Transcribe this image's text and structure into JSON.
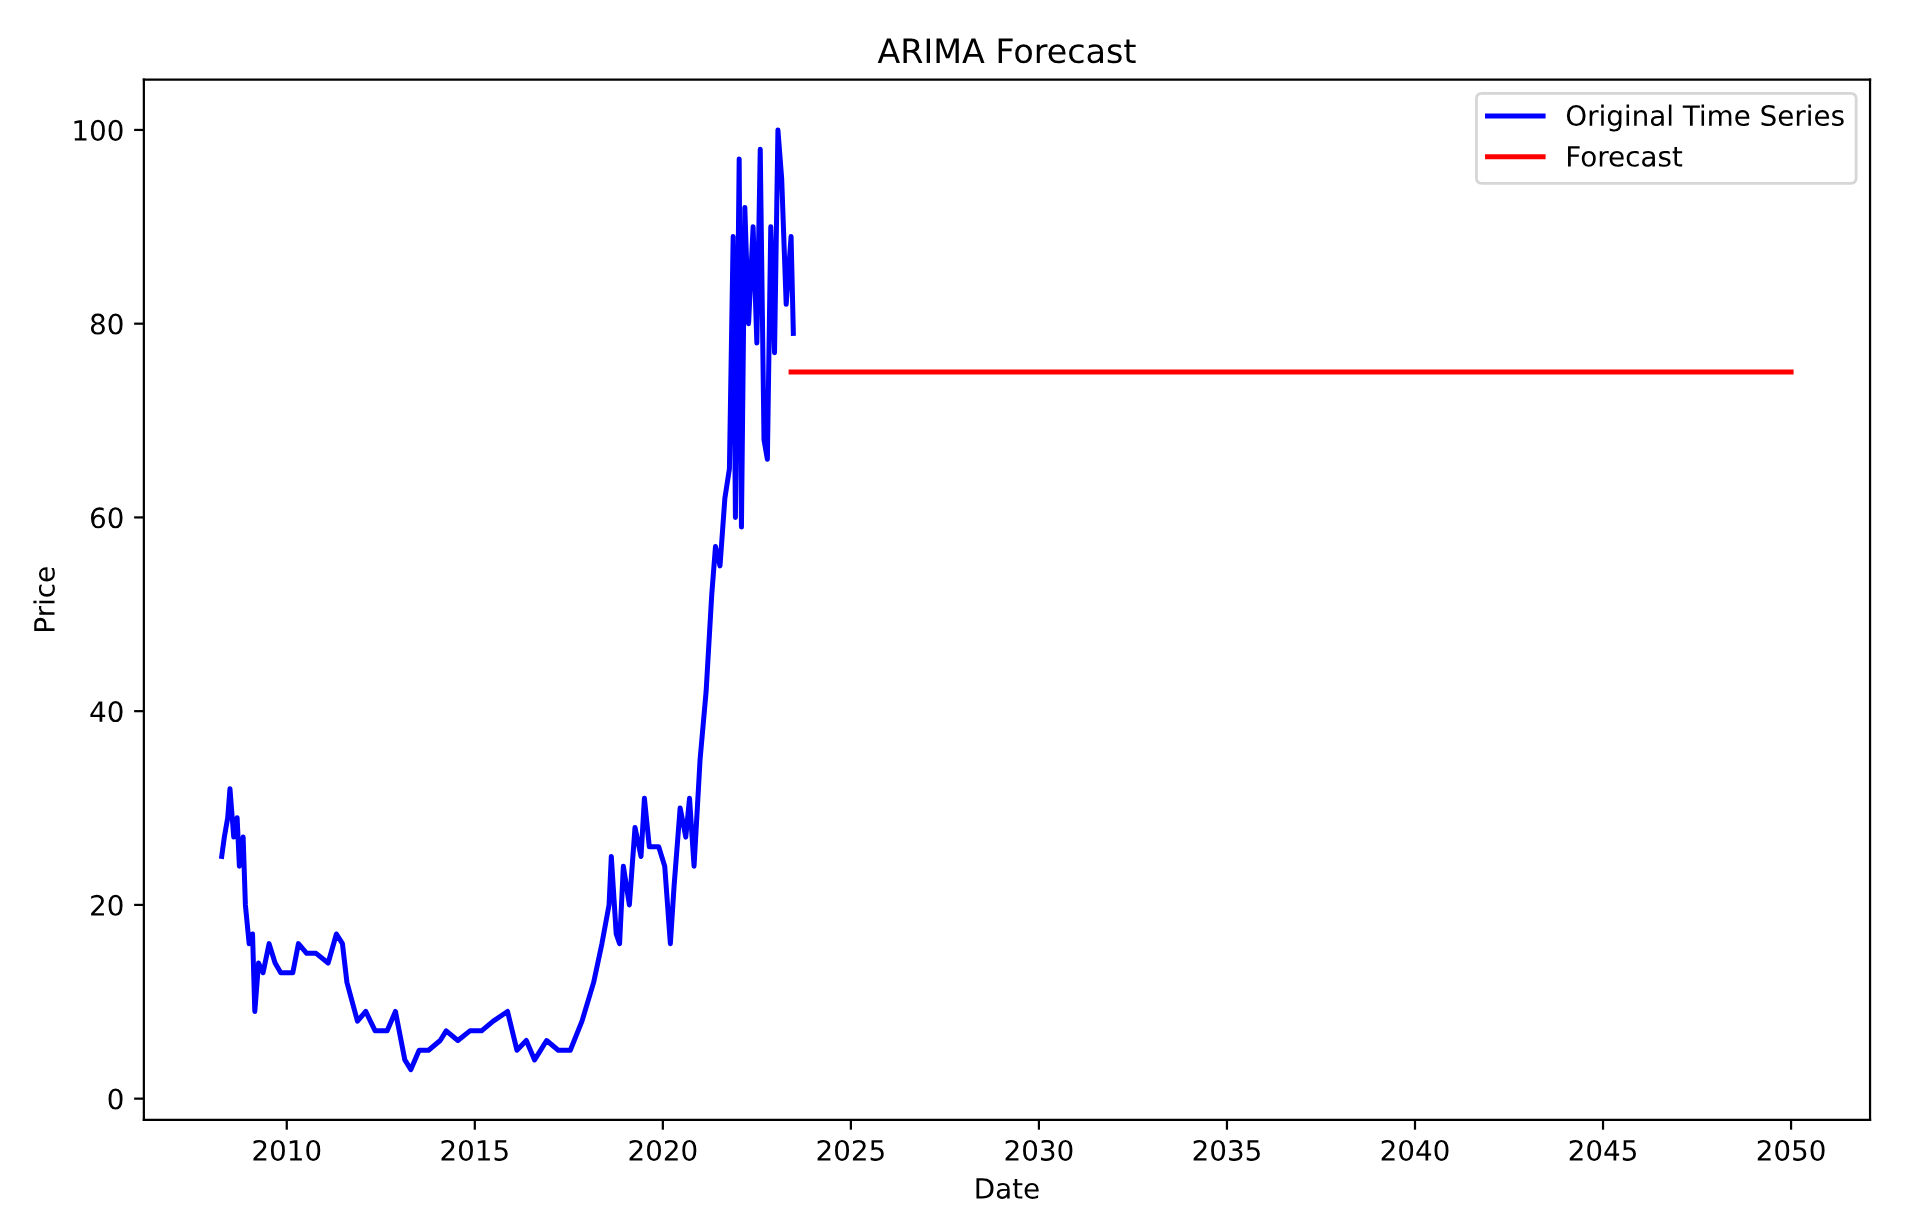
{
  "chart_data": {
    "type": "line",
    "title": "ARIMA Forecast",
    "xlabel": "Date",
    "ylabel": "Price",
    "xlim": [
      2006.2,
      2052.1
    ],
    "ylim": [
      -2.2,
      105.2
    ],
    "xticks": [
      2010,
      2015,
      2020,
      2025,
      2030,
      2035,
      2040,
      2045,
      2050
    ],
    "yticks": [
      0,
      20,
      40,
      60,
      80,
      100
    ],
    "grid": false,
    "legend": "top right",
    "series": [
      {
        "name": "Original Time Series",
        "color": "#0000ff",
        "x": [
          2008.27,
          2008.34,
          2008.43,
          2008.49,
          2008.59,
          2008.68,
          2008.74,
          2008.84,
          2008.9,
          2009.0,
          2009.09,
          2009.15,
          2009.25,
          2009.37,
          2009.53,
          2009.69,
          2009.84,
          2010.16,
          2010.31,
          2010.53,
          2010.78,
          2011.1,
          2011.32,
          2011.48,
          2011.6,
          2011.88,
          2012.1,
          2012.35,
          2012.67,
          2012.89,
          2013.14,
          2013.3,
          2013.52,
          2013.77,
          2014.08,
          2014.24,
          2014.55,
          2014.87,
          2015.18,
          2015.49,
          2015.87,
          2016.12,
          2016.37,
          2016.59,
          2016.91,
          2017.22,
          2017.54,
          2017.85,
          2018.16,
          2018.38,
          2018.57,
          2018.63,
          2018.76,
          2018.85,
          2018.95,
          2019.11,
          2019.26,
          2019.42,
          2019.51,
          2019.64,
          2019.89,
          2020.05,
          2020.2,
          2020.3,
          2020.46,
          2020.61,
          2020.71,
          2020.83,
          2020.99,
          2021.15,
          2021.3,
          2021.4,
          2021.52,
          2021.65,
          2021.77,
          2021.87,
          2021.93,
          2022.03,
          2022.09,
          2022.18,
          2022.28,
          2022.4,
          2022.5,
          2022.59,
          2022.69,
          2022.78,
          2022.87,
          2022.97,
          2023.06,
          2023.16,
          2023.28,
          2023.41,
          2023.47
        ],
        "values": [
          25,
          27,
          29,
          32,
          27,
          29,
          24,
          27,
          20,
          16,
          17,
          9,
          14,
          13,
          16,
          14,
          13,
          13,
          16,
          15,
          15,
          14,
          17,
          16,
          12,
          8,
          9,
          7,
          7,
          9,
          4,
          3,
          5,
          5,
          6,
          7,
          6,
          7,
          7,
          8,
          9,
          5,
          6,
          4,
          6,
          5,
          5,
          8,
          12,
          16,
          20,
          25,
          17,
          16,
          24,
          20,
          28,
          25,
          31,
          26,
          26,
          24,
          16,
          22,
          30,
          27,
          31,
          24,
          35,
          42,
          52,
          57,
          55,
          62,
          65,
          89,
          60,
          97,
          59,
          92,
          80,
          90,
          78,
          98,
          68,
          66,
          90,
          77,
          100,
          95,
          82,
          89,
          79
        ]
      },
      {
        "name": "Forecast",
        "color": "#ff0000",
        "x": [
          2023.41,
          2050.0
        ],
        "values": [
          75,
          75
        ]
      }
    ]
  }
}
